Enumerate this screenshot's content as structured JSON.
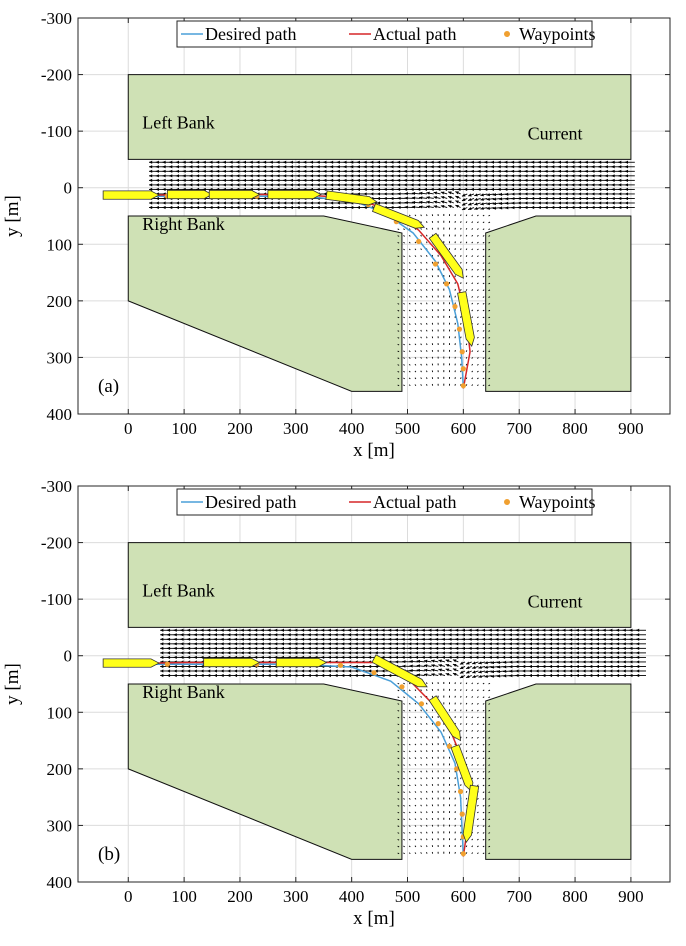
{
  "chart_data": [
    {
      "panel_label": "(a)",
      "type": "line",
      "xlabel": "x [m]",
      "ylabel": "y [m]",
      "xlim": [
        -90,
        970
      ],
      "ylim": [
        -300,
        400
      ],
      "y_reversed": true,
      "grid": true,
      "xticks": [
        0,
        100,
        200,
        300,
        400,
        500,
        600,
        700,
        800,
        900
      ],
      "yticks": [
        -300,
        -200,
        -100,
        0,
        100,
        200,
        300,
        400
      ],
      "legend": {
        "position": "top-center",
        "entries": [
          {
            "name": "Desired path",
            "color": "#4a9fd8",
            "marker": "line"
          },
          {
            "name": "Actual path",
            "color": "#d62728",
            "marker": "line"
          },
          {
            "name": "Waypoints",
            "color": "#f0a030",
            "marker": "dot"
          }
        ]
      },
      "annotations": [
        {
          "text": "Left Bank",
          "x": 25,
          "y": -105
        },
        {
          "text": "Current",
          "x": 715,
          "y": -85
        },
        {
          "text": "Right Bank",
          "x": 25,
          "y": 75
        }
      ],
      "banks": [
        {
          "name": "left-bank",
          "points": [
            [
              0,
              -200
            ],
            [
              900,
              -200
            ],
            [
              900,
              -50
            ],
            [
              0,
              -50
            ]
          ]
        },
        {
          "name": "right-bank",
          "points": [
            [
              0,
              50
            ],
            [
              350,
              50
            ],
            [
              490,
              80
            ],
            [
              490,
              360
            ],
            [
              400,
              360
            ],
            [
              0,
              200
            ]
          ]
        },
        {
          "name": "far-bank",
          "points": [
            [
              640,
              80
            ],
            [
              730,
              50
            ],
            [
              900,
              50
            ],
            [
              900,
              360
            ],
            [
              640,
              360
            ]
          ]
        }
      ],
      "series": [
        {
          "name": "Desired path",
          "color": "#4a9fd8",
          "points": [
            [
              -40,
              15
            ],
            [
              100,
              15
            ],
            [
              200,
              15
            ],
            [
              300,
              15
            ],
            [
              400,
              22
            ],
            [
              460,
              45
            ],
            [
              510,
              80
            ],
            [
              550,
              130
            ],
            [
              575,
              180
            ],
            [
              590,
              240
            ],
            [
              597,
              300
            ],
            [
              600,
              355
            ]
          ]
        },
        {
          "name": "Actual path",
          "color": "#d62728",
          "points": [
            [
              -40,
              15
            ],
            [
              100,
              12
            ],
            [
              200,
              12
            ],
            [
              300,
              12
            ],
            [
              400,
              18
            ],
            [
              470,
              40
            ],
            [
              520,
              75
            ],
            [
              560,
              120
            ],
            [
              590,
              170
            ],
            [
              605,
              230
            ],
            [
              612,
              290
            ],
            [
              600,
              355
            ]
          ]
        }
      ],
      "waypoints": [
        [
          70,
          15
        ],
        [
          150,
          15
        ],
        [
          230,
          15
        ],
        [
          300,
          15
        ],
        [
          370,
          17
        ],
        [
          430,
          30
        ],
        [
          480,
          60
        ],
        [
          520,
          95
        ],
        [
          550,
          135
        ],
        [
          570,
          170
        ],
        [
          585,
          210
        ],
        [
          593,
          250
        ],
        [
          598,
          290
        ],
        [
          600,
          320
        ],
        [
          600,
          350
        ]
      ],
      "ships": [
        {
          "x1": -45,
          "y1": 13,
          "x2": 55,
          "y2": 13
        },
        {
          "x1": 70,
          "y1": 12,
          "x2": 150,
          "y2": 12
        },
        {
          "x1": 145,
          "y1": 12,
          "x2": 235,
          "y2": 12
        },
        {
          "x1": 250,
          "y1": 12,
          "x2": 345,
          "y2": 12
        },
        {
          "x1": 355,
          "y1": 13,
          "x2": 445,
          "y2": 25
        },
        {
          "x1": 440,
          "y1": 35,
          "x2": 530,
          "y2": 70
        },
        {
          "x1": 545,
          "y1": 85,
          "x2": 600,
          "y2": 160
        },
        {
          "x1": 597,
          "y1": 185,
          "x2": 615,
          "y2": 280
        }
      ],
      "current_field": {
        "channel_x": [
          55,
          915
        ],
        "channel_y": [
          -45,
          35
        ],
        "branch_x": [
          485,
          645
        ],
        "branch_y": [
          50,
          355
        ],
        "bend_center_x": 600
      }
    },
    {
      "panel_label": "(b)",
      "type": "line",
      "xlabel": "x [m]",
      "ylabel": "y [m]",
      "xlim": [
        -90,
        970
      ],
      "ylim": [
        -300,
        400
      ],
      "y_reversed": true,
      "grid": true,
      "xticks": [
        0,
        100,
        200,
        300,
        400,
        500,
        600,
        700,
        800,
        900
      ],
      "yticks": [
        -300,
        -200,
        -100,
        0,
        100,
        200,
        300,
        400
      ],
      "legend": {
        "position": "top-center",
        "entries": [
          {
            "name": "Desired path",
            "color": "#4a9fd8",
            "marker": "line"
          },
          {
            "name": "Actual path",
            "color": "#d62728",
            "marker": "line"
          },
          {
            "name": "Waypoints",
            "color": "#f0a030",
            "marker": "dot"
          }
        ]
      },
      "annotations": [
        {
          "text": "Left Bank",
          "x": 25,
          "y": -105
        },
        {
          "text": "Current",
          "x": 715,
          "y": -85
        },
        {
          "text": "Right Bank",
          "x": 25,
          "y": 75
        }
      ],
      "banks": [
        {
          "name": "left-bank",
          "points": [
            [
              0,
              -200
            ],
            [
              900,
              -200
            ],
            [
              900,
              -50
            ],
            [
              0,
              -50
            ]
          ]
        },
        {
          "name": "right-bank",
          "points": [
            [
              0,
              50
            ],
            [
              350,
              50
            ],
            [
              490,
              80
            ],
            [
              490,
              360
            ],
            [
              400,
              360
            ],
            [
              0,
              200
            ]
          ]
        },
        {
          "name": "far-bank",
          "points": [
            [
              640,
              80
            ],
            [
              730,
              50
            ],
            [
              900,
              50
            ],
            [
              900,
              360
            ],
            [
              640,
              360
            ]
          ]
        }
      ],
      "series": [
        {
          "name": "Desired path",
          "color": "#4a9fd8",
          "points": [
            [
              -40,
              15
            ],
            [
              100,
              15
            ],
            [
              200,
              15
            ],
            [
              300,
              15
            ],
            [
              400,
              20
            ],
            [
              470,
              45
            ],
            [
              520,
              85
            ],
            [
              560,
              135
            ],
            [
              585,
              190
            ],
            [
              595,
              250
            ],
            [
              600,
              355
            ]
          ]
        },
        {
          "name": "Actual path",
          "color": "#d62728",
          "points": [
            [
              -40,
              15
            ],
            [
              100,
              12
            ],
            [
              200,
              12
            ],
            [
              300,
              12
            ],
            [
              440,
              12
            ],
            [
              500,
              40
            ],
            [
              545,
              85
            ],
            [
              580,
              140
            ],
            [
              605,
              200
            ],
            [
              615,
              255
            ],
            [
              605,
              320
            ],
            [
              600,
              355
            ]
          ]
        }
      ],
      "waypoints": [
        [
          70,
          15
        ],
        [
          150,
          15
        ],
        [
          230,
          15
        ],
        [
          300,
          15
        ],
        [
          380,
          17
        ],
        [
          440,
          30
        ],
        [
          490,
          55
        ],
        [
          525,
          85
        ],
        [
          555,
          120
        ],
        [
          575,
          160
        ],
        [
          588,
          200
        ],
        [
          595,
          240
        ],
        [
          598,
          280
        ],
        [
          600,
          320
        ],
        [
          600,
          350
        ]
      ],
      "ships": [
        {
          "x1": -45,
          "y1": 13,
          "x2": 55,
          "y2": 13
        },
        {
          "x1": 135,
          "y1": 12,
          "x2": 235,
          "y2": 12
        },
        {
          "x1": 265,
          "y1": 12,
          "x2": 355,
          "y2": 12
        },
        {
          "x1": 440,
          "y1": 5,
          "x2": 535,
          "y2": 55
        },
        {
          "x1": 545,
          "y1": 75,
          "x2": 595,
          "y2": 150
        },
        {
          "x1": 585,
          "y1": 160,
          "x2": 615,
          "y2": 240
        },
        {
          "x1": 620,
          "y1": 230,
          "x2": 605,
          "y2": 330
        }
      ],
      "current_field": {
        "channel_x": [
          75,
          930
        ],
        "channel_y": [
          -45,
          35
        ],
        "branch_x": [
          485,
          645
        ],
        "branch_y": [
          50,
          355
        ],
        "bend_center_x": 600
      }
    }
  ],
  "colors": {
    "bank_fill": "#cfe1b5",
    "bank_stroke": "#111111",
    "grid": "#dcdcdc",
    "ship_fill": "#ffff1a",
    "ship_stroke": "#333333",
    "arrow": "#000000",
    "waypoint": "#f0a030"
  }
}
